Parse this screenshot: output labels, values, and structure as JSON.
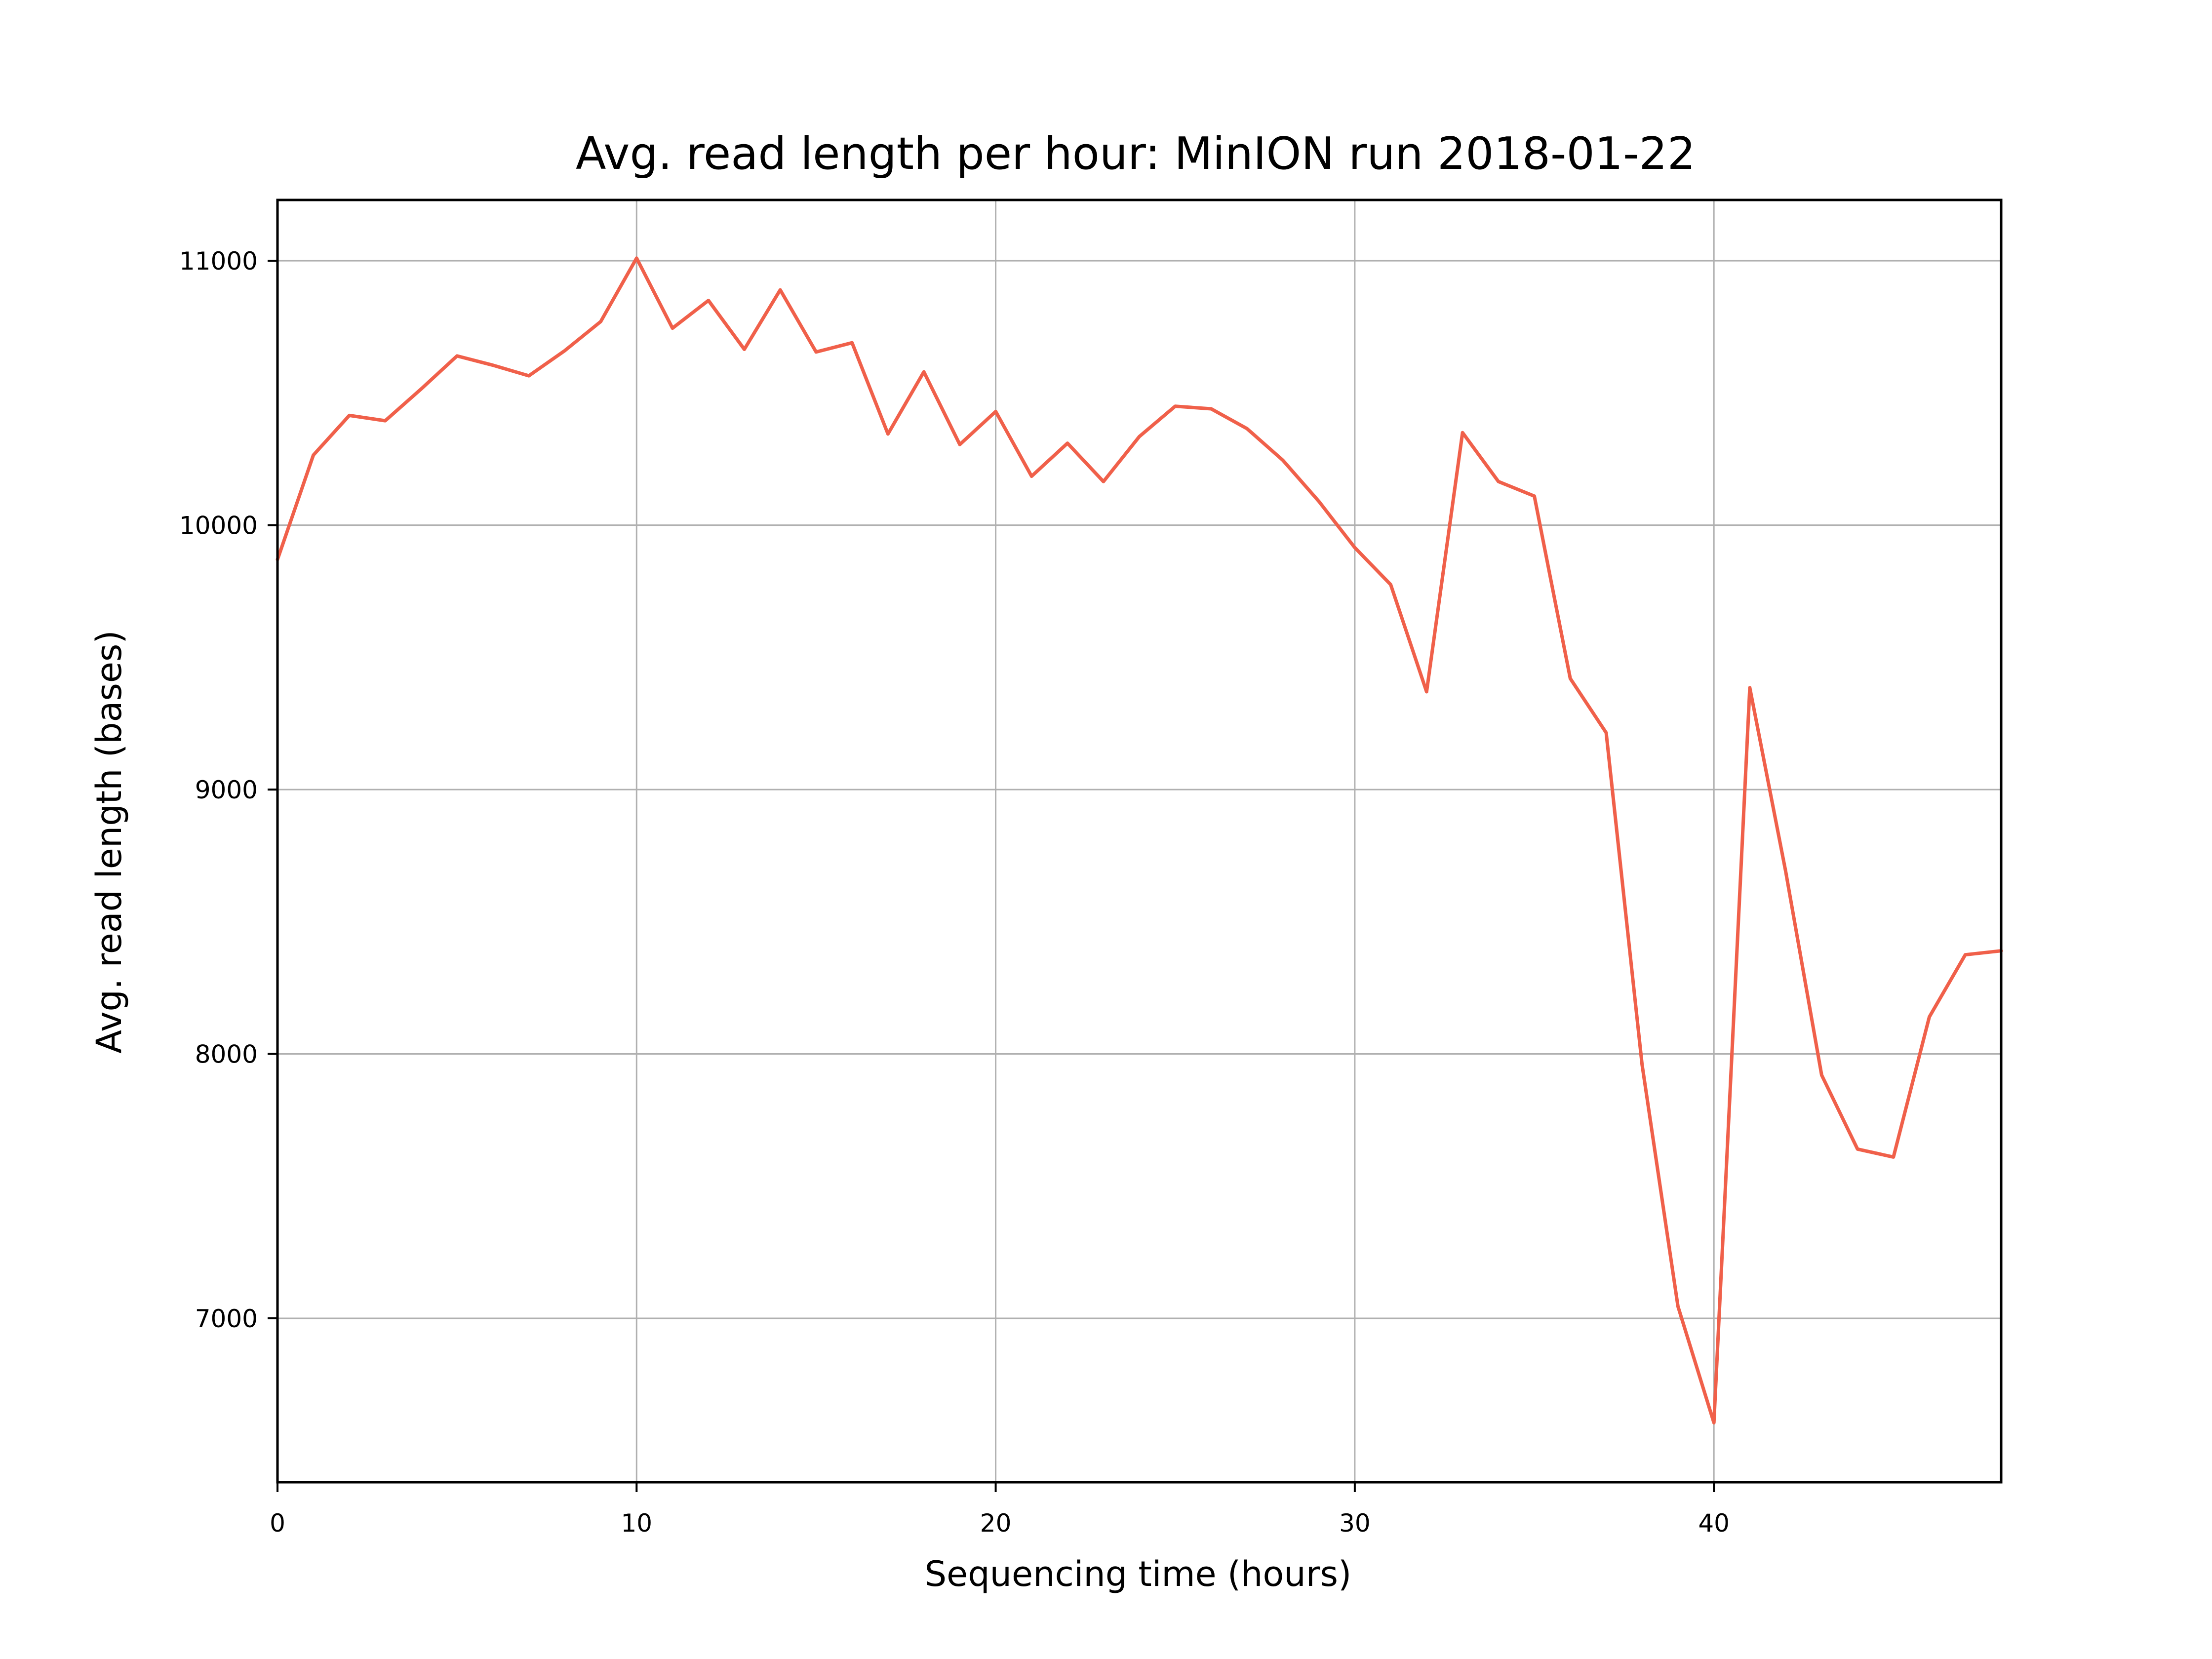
{
  "chart_data": {
    "type": "line",
    "title": "Avg. read length per hour: MinION run 2018-01-22",
    "xlabel": "Sequencing time (hours)",
    "ylabel": "Avg. read length (bases)",
    "xlim": [
      0,
      48
    ],
    "ylim": [
      6380,
      11230
    ],
    "xticks": [
      0,
      10,
      20,
      30,
      40
    ],
    "xtick_labels": [
      "0",
      "10",
      "20",
      "30",
      "40"
    ],
    "yticks": [
      7000,
      8000,
      9000,
      10000,
      11000
    ],
    "ytick_labels": [
      "7000",
      "8000",
      "9000",
      "10000",
      "11000"
    ],
    "grid": true,
    "legend": "none",
    "series": [
      {
        "color": "#f0604a",
        "x": [
          0,
          1,
          2,
          3,
          4,
          5,
          6,
          7,
          8,
          9,
          10,
          11,
          12,
          13,
          14,
          15,
          16,
          17,
          18,
          19,
          20,
          21,
          22,
          23,
          24,
          25,
          26,
          27,
          28,
          29,
          30,
          31,
          32,
          33,
          34,
          35,
          36,
          37,
          38,
          39,
          40,
          41,
          42,
          43,
          44,
          45,
          46,
          47,
          48
        ],
        "values": [
          9870,
          10265,
          10415,
          10395,
          10515,
          10640,
          10605,
          10565,
          10660,
          10770,
          11010,
          10745,
          10850,
          10665,
          10890,
          10655,
          10690,
          10345,
          10580,
          10305,
          10430,
          10185,
          10310,
          10165,
          10335,
          10450,
          10440,
          10365,
          10245,
          10090,
          9915,
          9775,
          9370,
          10350,
          10165,
          10110,
          9420,
          9215,
          7960,
          7045,
          6605,
          9385,
          8690,
          7920,
          7640,
          7610,
          8140,
          8375,
          8390
        ]
      }
    ]
  }
}
